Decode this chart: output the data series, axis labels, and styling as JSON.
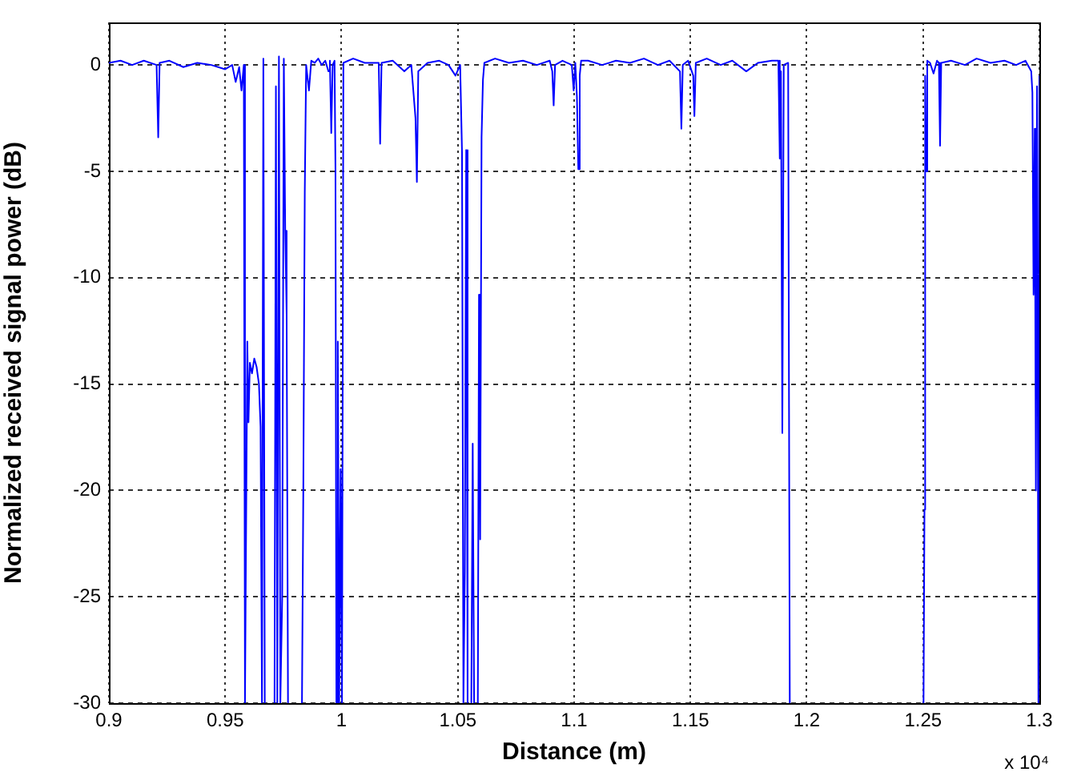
{
  "chart_data": {
    "type": "line",
    "xlabel": "Distance (m)",
    "ylabel": "Normalized received signal power (dB)",
    "annotations": [
      "x 10⁴"
    ],
    "x": [
      0.9,
      0.905,
      0.91,
      0.915,
      0.9205,
      0.9212,
      0.9218,
      0.926,
      0.932,
      0.938,
      0.944,
      0.95,
      0.953,
      0.9545,
      0.956,
      0.957,
      0.958,
      0.9585,
      0.9595,
      0.96,
      0.9606,
      0.9615,
      0.9625,
      0.9635,
      0.9645,
      0.9652,
      0.9658,
      0.9664,
      0.967,
      0.969,
      0.9712,
      0.9718,
      0.9724,
      0.9731,
      0.9737,
      0.9745,
      0.9752,
      0.9758,
      0.9764,
      0.977,
      0.98,
      0.983,
      0.9836,
      0.9842,
      0.9848,
      0.986,
      0.987,
      0.9885,
      0.99,
      0.9915,
      0.993,
      0.9944,
      0.995,
      0.9956,
      0.9962,
      0.997,
      0.9974,
      0.9978,
      0.9984,
      0.999,
      0.9996,
      1.0002,
      1.0008,
      1.005,
      1.01,
      1.016,
      1.0166,
      1.0172,
      1.022,
      1.027,
      1.03,
      1.0318,
      1.0324,
      1.033,
      1.037,
      1.042,
      1.046,
      1.049,
      1.051,
      1.0518,
      1.0524,
      1.053,
      1.0536,
      1.0542,
      1.055,
      1.0558,
      1.0564,
      1.057,
      1.058,
      1.0586,
      1.0591,
      1.0596,
      1.0602,
      1.0608,
      1.0614,
      1.066,
      1.072,
      1.078,
      1.084,
      1.0895,
      1.0906,
      1.0912,
      1.0918,
      1.095,
      1.099,
      1.0998,
      1.1005,
      1.1012,
      1.1018,
      1.1024,
      1.103,
      1.106,
      1.112,
      1.118,
      1.124,
      1.13,
      1.136,
      1.141,
      1.1455,
      1.1461,
      1.1467,
      1.149,
      1.1512,
      1.1517,
      1.1523,
      1.157,
      1.163,
      1.168,
      1.174,
      1.179,
      1.185,
      1.1878,
      1.1884,
      1.1889,
      1.1895,
      1.1901,
      1.192,
      1.1927,
      1.22,
      1.2502,
      1.2506,
      1.2509,
      1.2513,
      1.2518,
      1.253,
      1.2545,
      1.256,
      1.2568,
      1.2573,
      1.2578,
      1.262,
      1.268,
      1.273,
      1.279,
      1.285,
      1.29,
      1.294,
      1.2965,
      1.297,
      1.2975,
      1.298,
      1.2985,
      1.299,
      1.2996,
      1.3
    ],
    "values": [
      0.1,
      0.2,
      0,
      0.2,
      0,
      -3.4,
      0.1,
      0.2,
      -0.1,
      0.1,
      0,
      -0.2,
      0,
      -0.8,
      -0.1,
      -1.2,
      0,
      -30,
      -13,
      -16.8,
      -14,
      -14.5,
      -13.8,
      -14.2,
      -15,
      -17,
      -30,
      0.3,
      -30,
      null,
      -30,
      -1,
      -30,
      0.4,
      -30,
      -25,
      0.3,
      -7.8,
      -11.7,
      -30,
      null,
      -30,
      -19.5,
      -6,
      0,
      -1.2,
      0.2,
      0.1,
      0.3,
      0,
      0.2,
      -0.3,
      0.2,
      -3.2,
      0,
      0.2,
      -4.9,
      -30,
      -13,
      -30,
      -19,
      -30,
      0.1,
      0.3,
      0.1,
      0.1,
      -3.7,
      0.1,
      0.2,
      -0.3,
      0,
      -2.5,
      -5.5,
      -0.3,
      0.1,
      0.2,
      0,
      -0.5,
      0,
      -4.1,
      -30,
      -23.8,
      -4,
      -30,
      null,
      -30,
      -17.8,
      -30,
      null,
      -30,
      -10.8,
      -22.3,
      -3.4,
      -0.7,
      0.1,
      0.3,
      0.1,
      0.2,
      0,
      0.2,
      -0.3,
      -1.9,
      0,
      0.2,
      0,
      -1.2,
      0.1,
      -1.5,
      -4.9,
      -0.5,
      0.2,
      0.2,
      0,
      0.2,
      0.1,
      0.3,
      0,
      0.2,
      -0.3,
      -3,
      0,
      0.2,
      -0.5,
      -2.4,
      0.1,
      0.3,
      0,
      0.2,
      -0.3,
      0.1,
      0.2,
      0.2,
      -4.4,
      -0.3,
      -17.3,
      0,
      0.1,
      -30,
      null,
      -30,
      -20.9,
      -0.5,
      -5,
      0.2,
      0.1,
      -0.4,
      0.2,
      0.1,
      -3.8,
      0.1,
      0.2,
      0,
      0.3,
      0.1,
      0.2,
      0,
      0.2,
      -0.3,
      -1.3,
      -10.8,
      -3,
      -20,
      -1,
      -30,
      -0.5
    ],
    "color": "#0000ff",
    "marker": "none",
    "xlim": [
      0.9,
      1.3
    ],
    "ylim": [
      -30,
      2
    ],
    "xticks": [
      0.9,
      0.95,
      1,
      1.05,
      1.1,
      1.15,
      1.2,
      1.25,
      1.3
    ],
    "yticks": [
      -30,
      -25,
      -20,
      -15,
      -10,
      -5,
      0
    ],
    "grid": true
  }
}
